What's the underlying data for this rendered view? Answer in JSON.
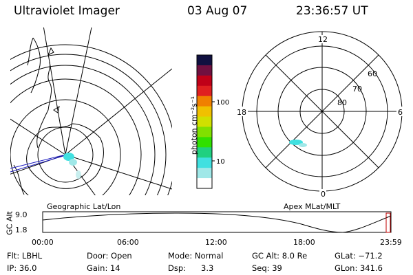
{
  "header": {
    "instrument": "Ultraviolet Imager",
    "date": "03 Aug 07",
    "time": "23:36:57 UT"
  },
  "colorbar": {
    "unit_label": "photon cm⁻²s⁻¹",
    "ticks": [
      "100",
      "10"
    ],
    "colors": [
      "#101040",
      "#701040",
      "#c00018",
      "#e02020",
      "#f08000",
      "#f0c000",
      "#d0e000",
      "#80e000",
      "#30e000",
      "#20d080",
      "#40e0e0",
      "#a0e8e8",
      "#ffffff"
    ]
  },
  "left_map": {
    "caption": "Geographic Lat/Lon"
  },
  "right_map": {
    "caption": "Apex MLat/MLT",
    "mlt_labels": {
      "top": "12",
      "left": "18",
      "right": "6",
      "bottom": "0"
    },
    "lat_labels": [
      "60",
      "70",
      "80"
    ]
  },
  "altitude_plot": {
    "ylabel": "GC Alt",
    "yticks": [
      "9.0",
      "1.8"
    ],
    "xticks": [
      "00:00",
      "06:00",
      "12:00",
      "18:00",
      "23:59"
    ],
    "marker_color": "#c00000"
  },
  "info": {
    "filter": "Flt: LBHL",
    "ip": "IP: 36.0",
    "door": "Door: Open",
    "gain": "Gain: 14",
    "mode": "Mode: Normal",
    "dsp_label": "Dsp:",
    "dsp_value": "3.3",
    "gc_alt": "GC Alt: 8.0 Re",
    "seq": "Seq: 39",
    "glat": "GLat: −71.2",
    "glon": "GLon: 341.6"
  }
}
